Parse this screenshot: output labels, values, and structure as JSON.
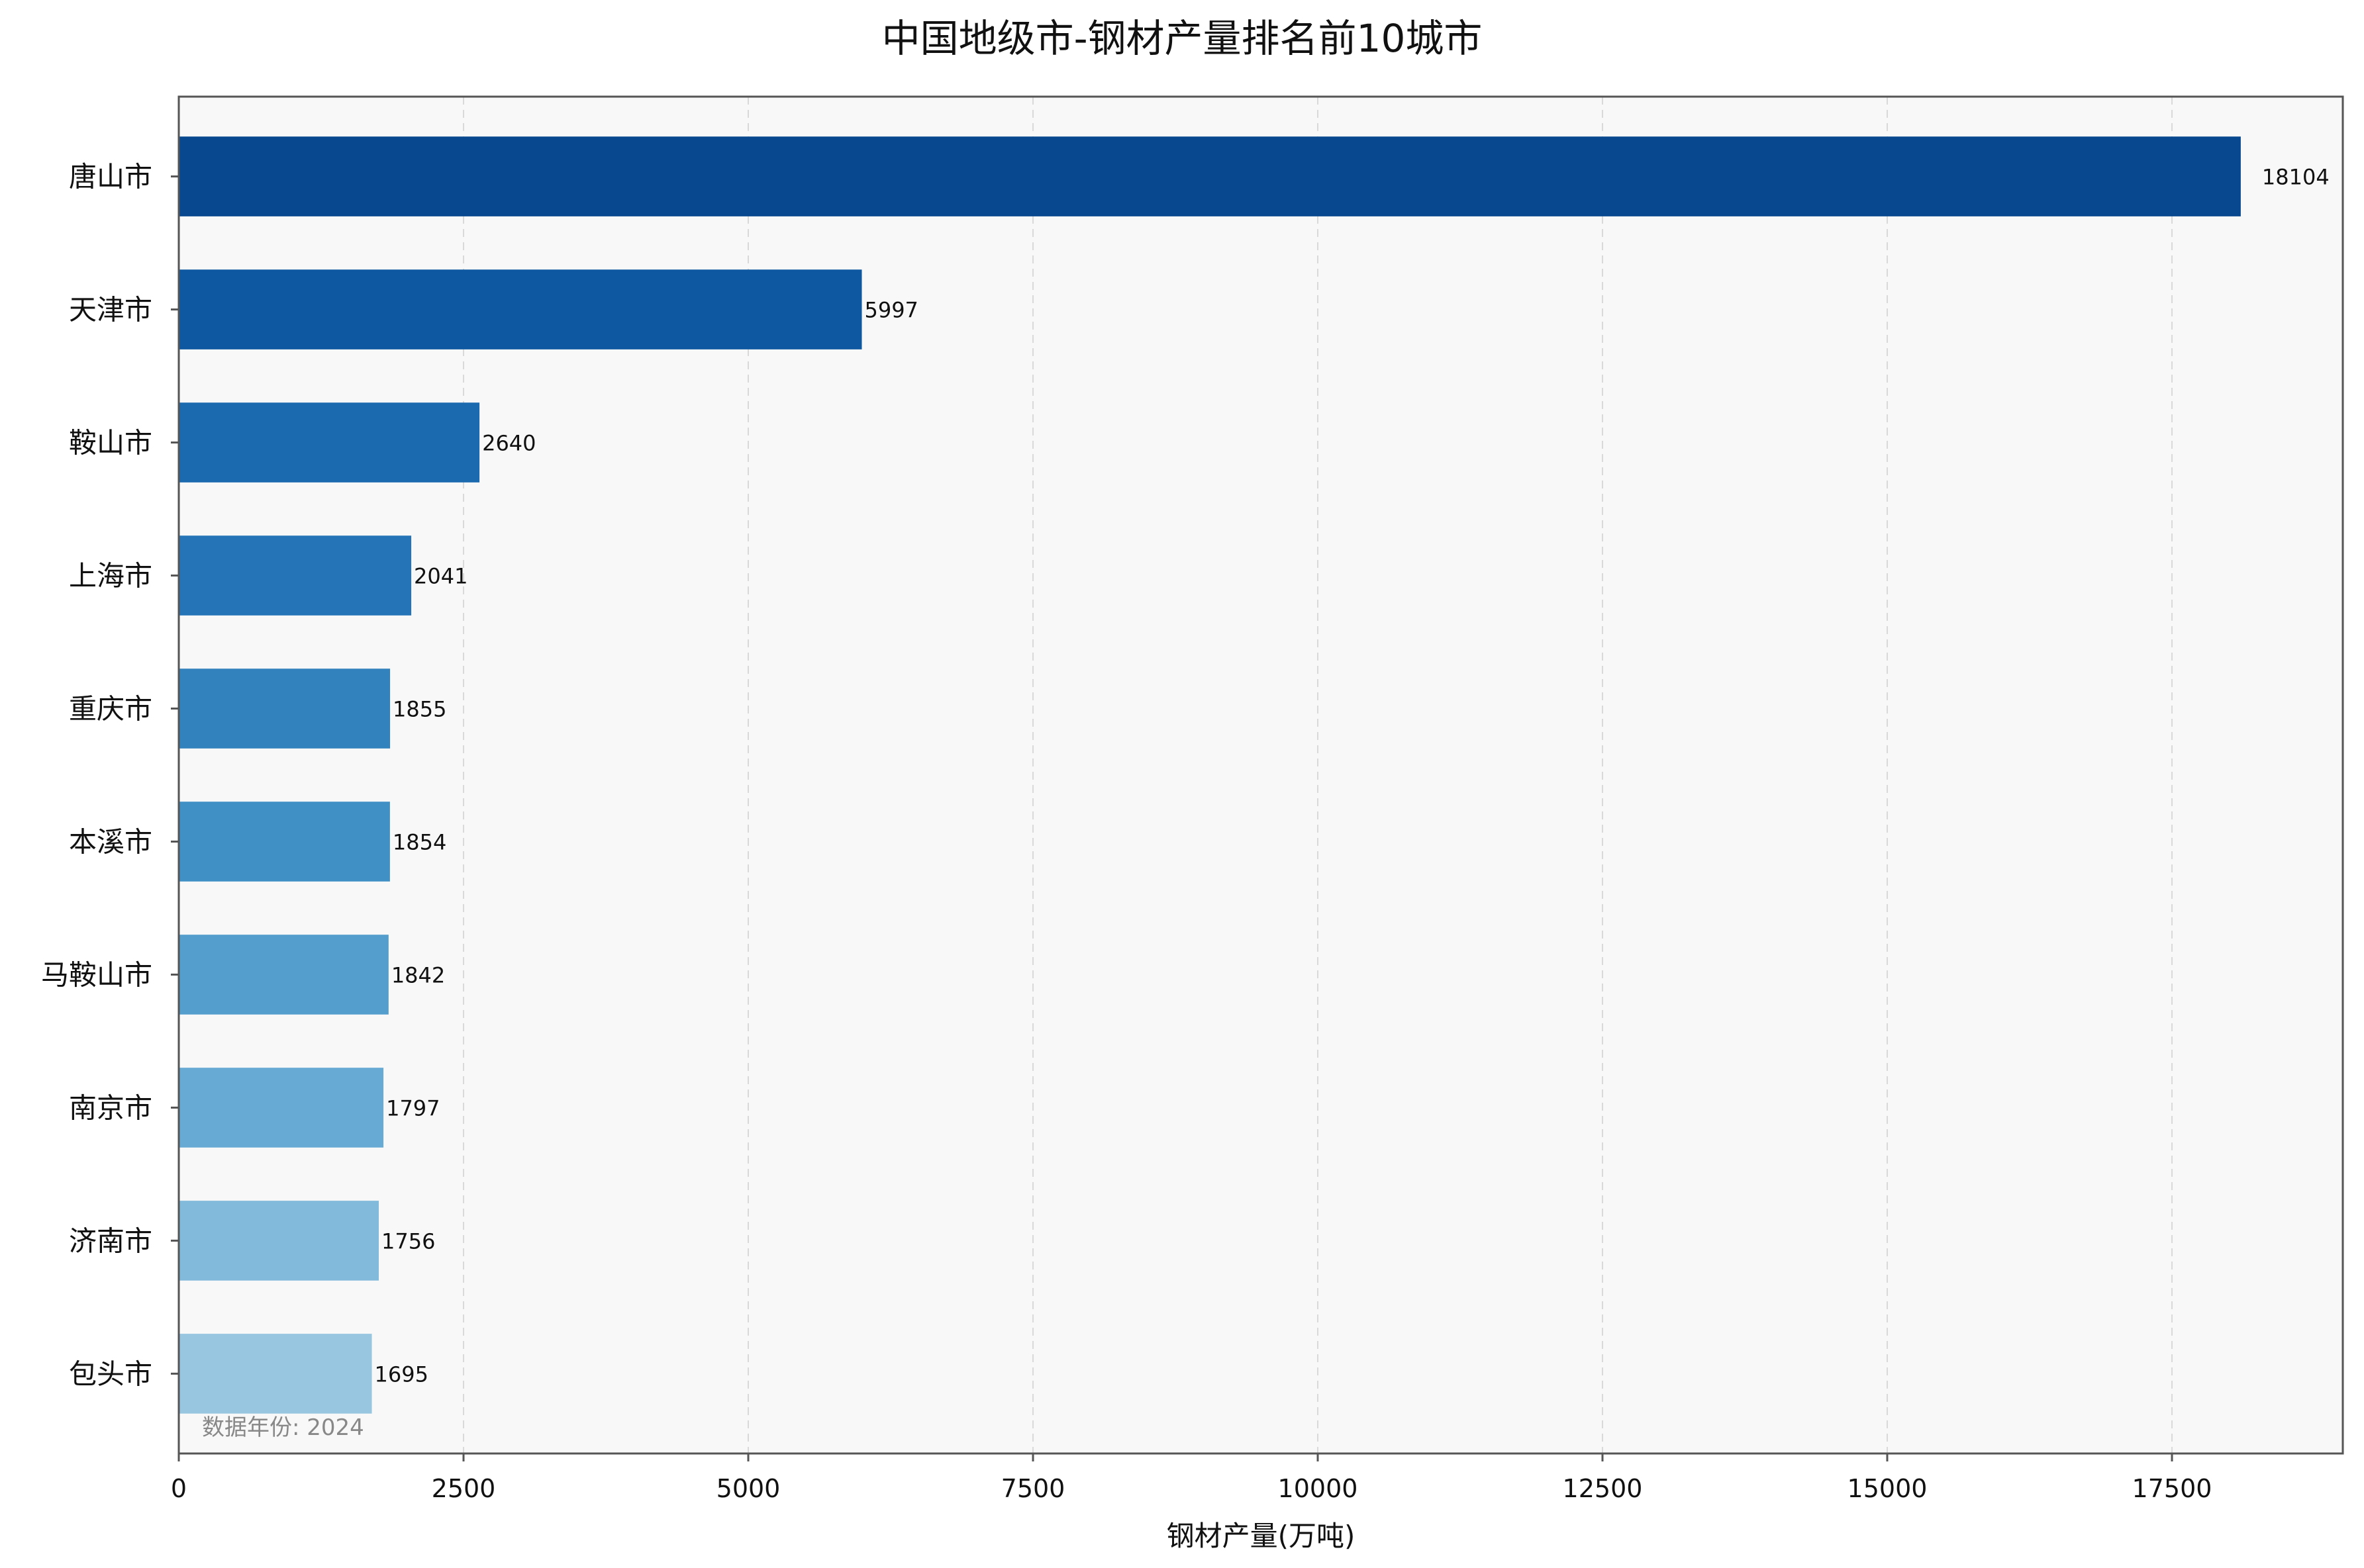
{
  "chart_data": {
    "type": "bar",
    "orientation": "horizontal",
    "title": "中国地级市-钢材产量排名前10城市",
    "xlabel": "钢材产量(万吨)",
    "ylabel": "",
    "xlim": [
      0,
      19000
    ],
    "x_ticks": [
      0,
      2500,
      5000,
      7500,
      10000,
      12500,
      15000,
      17500
    ],
    "grid": "x-dashed",
    "categories": [
      "唐山市",
      "天津市",
      "鞍山市",
      "上海市",
      "重庆市",
      "本溪市",
      "马鞍山市",
      "南京市",
      "济南市",
      "包头市"
    ],
    "values": [
      18104,
      5997,
      2640,
      2041,
      1855,
      1854,
      1842,
      1797,
      1756,
      1695
    ],
    "colors": [
      "#08488e",
      "#0d58a1",
      "#1b69af",
      "#2474b7",
      "#3282be",
      "#4090c5",
      "#539ecd",
      "#67abd4",
      "#81badb",
      "#98c6e1"
    ],
    "note": "数据年份: 2024",
    "plot_background": "#f8f8f8"
  }
}
